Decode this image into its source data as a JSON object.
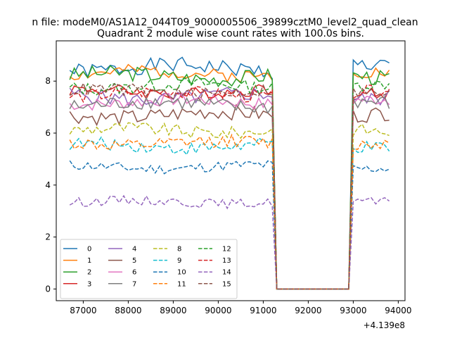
{
  "suptitle": "n file: modeM0/AS1A12_044T09_9000005506_39899cztM0_level2_quad_clean",
  "title": "Quadrant 2 module wise count rates with 100.0s bins.",
  "x_offset_label": "+4.139e8",
  "chart_data": {
    "type": "line",
    "title": "Quadrant 2 module wise count rates with 100.0s bins.",
    "xlabel": "",
    "ylabel": "",
    "x_offset": 413900000,
    "xlim": [
      86400,
      94150
    ],
    "ylim": [
      -0.45,
      9.55
    ],
    "xticks": [
      87000,
      88000,
      89000,
      90000,
      91000,
      92000,
      93000,
      94000
    ],
    "xtick_labels": [
      "87000",
      "88000",
      "89000",
      "90000",
      "91000",
      "92000",
      "93000",
      "94000"
    ],
    "yticks": [
      0,
      2,
      4,
      6,
      8
    ],
    "ytick_labels": [
      "0",
      "2",
      "4",
      "6",
      "8"
    ],
    "grid": false,
    "legend_position": "lower-left",
    "legend_columns": 4,
    "segments": [
      {
        "start": 86700,
        "end": 91200
      },
      {
        "start": 93000,
        "end": 93850
      }
    ],
    "gap": {
      "start": 91300,
      "end": 92900,
      "value": 0
    },
    "series": [
      {
        "name": "0",
        "color": "#1f77b4",
        "dash": "solid",
        "mean": 8.5,
        "amp": 0.3,
        "seed": 1
      },
      {
        "name": "1",
        "color": "#ff7f0e",
        "dash": "solid",
        "mean": 8.3,
        "amp": 0.25,
        "seed": 2
      },
      {
        "name": "2",
        "color": "#2ca02c",
        "dash": "solid",
        "mean": 8.2,
        "amp": 0.3,
        "seed": 3
      },
      {
        "name": "3",
        "color": "#d62728",
        "dash": "solid",
        "mean": 7.6,
        "amp": 0.25,
        "seed": 4
      },
      {
        "name": "4",
        "color": "#9467bd",
        "dash": "solid",
        "mean": 7.4,
        "amp": 0.3,
        "seed": 5
      },
      {
        "name": "5",
        "color": "#8c564b",
        "dash": "solid",
        "mean": 6.7,
        "amp": 0.3,
        "seed": 6
      },
      {
        "name": "6",
        "color": "#e377c2",
        "dash": "solid",
        "mean": 7.2,
        "amp": 0.25,
        "seed": 7
      },
      {
        "name": "7",
        "color": "#7f7f7f",
        "dash": "solid",
        "mean": 7.1,
        "amp": 0.3,
        "seed": 8
      },
      {
        "name": "8",
        "color": "#bcbd22",
        "dash": "dashed",
        "mean": 6.1,
        "amp": 0.25,
        "seed": 9
      },
      {
        "name": "9",
        "color": "#17becf",
        "dash": "dashed",
        "mean": 5.5,
        "amp": 0.25,
        "seed": 10
      },
      {
        "name": "10",
        "color": "#1f77b4",
        "dash": "dashed",
        "mean": 4.7,
        "amp": 0.2,
        "seed": 11
      },
      {
        "name": "11",
        "color": "#ff7f0e",
        "dash": "dashed",
        "mean": 5.6,
        "amp": 0.25,
        "seed": 12
      },
      {
        "name": "12",
        "color": "#2ca02c",
        "dash": "dashed",
        "mean": 7.8,
        "amp": 0.25,
        "seed": 13
      },
      {
        "name": "13",
        "color": "#d62728",
        "dash": "dashed",
        "mean": 7.5,
        "amp": 0.25,
        "seed": 14
      },
      {
        "name": "14",
        "color": "#9467bd",
        "dash": "dashed",
        "mean": 3.35,
        "amp": 0.18,
        "seed": 15
      },
      {
        "name": "15",
        "color": "#8c564b",
        "dash": "dashed",
        "mean": 7.6,
        "amp": 0.25,
        "seed": 16
      }
    ]
  }
}
